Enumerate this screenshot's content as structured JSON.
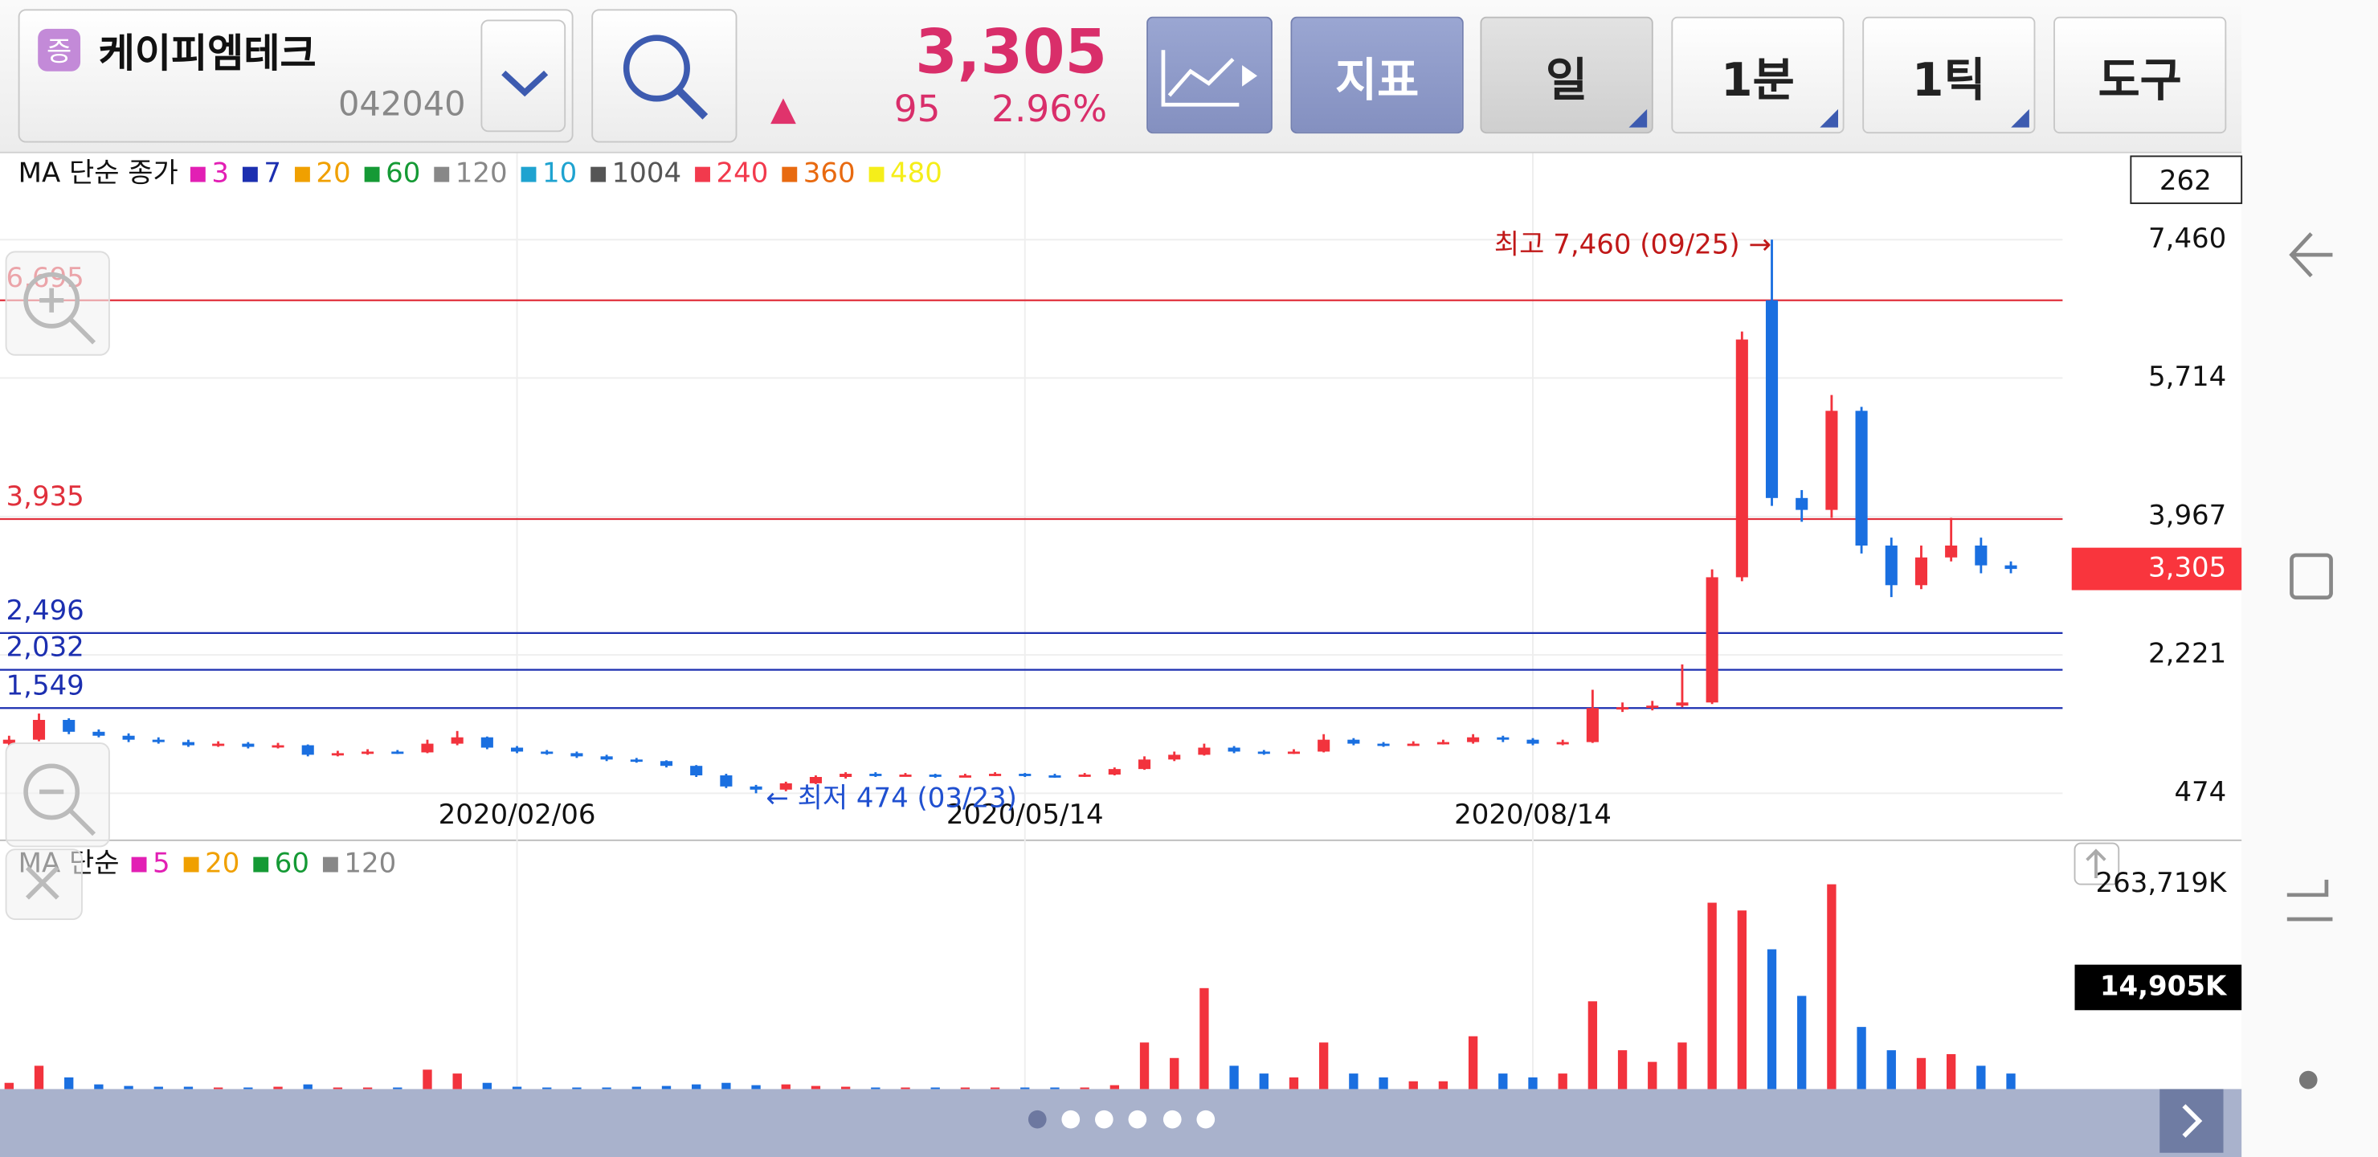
{
  "header": {
    "badge": "증",
    "name": "케이피엠테크",
    "code": "042040",
    "price": "3,305",
    "arrow": "▲",
    "change": "95",
    "change_pct": "2.96%",
    "buttons": [
      "지표",
      "일",
      "1분",
      "1틱",
      "도구"
    ]
  },
  "chart_data": {
    "type": "candlestick",
    "ma_legend": {
      "label": "MA 단순 종가",
      "items": [
        {
          "name": "3",
          "color": "#e21fb4"
        },
        {
          "name": "7",
          "color": "#1c2fb0"
        },
        {
          "name": "20",
          "color": "#f0a000"
        },
        {
          "name": "60",
          "color": "#159a35"
        },
        {
          "name": "120",
          "color": "#888888"
        },
        {
          "name": "10",
          "color": "#1fa3d0"
        },
        {
          "name": "1004",
          "color": "#555555"
        },
        {
          "name": "240",
          "color": "#f23a4d"
        },
        {
          "name": "360",
          "color": "#e86a10"
        },
        {
          "name": "480",
          "color": "#f5ee1a"
        }
      ]
    },
    "categories": [
      null,
      null,
      null,
      null,
      null,
      null,
      null,
      null,
      null,
      null,
      null,
      null,
      null,
      null,
      null,
      null,
      null,
      "2020/02/06",
      null,
      null,
      null,
      null,
      null,
      null,
      null,
      null,
      null,
      null,
      null,
      null,
      null,
      null,
      null,
      null,
      "2020/05/14",
      null,
      null,
      null,
      null,
      null,
      null,
      null,
      null,
      null,
      null,
      null,
      null,
      null,
      null,
      null,
      null,
      "2020/08/14",
      null,
      null,
      null,
      null,
      null,
      null,
      null,
      null,
      null,
      null,
      null,
      null,
      null,
      null,
      null,
      null
    ],
    "open": [
      1100,
      1150,
      1400,
      1250,
      1200,
      1150,
      1120,
      1080,
      1100,
      1060,
      1080,
      960,
      980,
      1000,
      990,
      1100,
      1180,
      1050,
      1000,
      980,
      940,
      900,
      880,
      820,
      700,
      560,
      520,
      600,
      680,
      720,
      700,
      710,
      690,
      700,
      720,
      700,
      690,
      710,
      780,
      900,
      960,
      1050,
      1000,
      980,
      1000,
      1150,
      1100,
      1080,
      1100,
      1120,
      1180,
      1150,
      1100,
      1120,
      1550,
      1560,
      1580,
      1620,
      3200,
      6695,
      4200,
      4050,
      5300,
      3600,
      3100,
      3450,
      3600,
      3350
    ],
    "high": [
      1200,
      1480,
      1420,
      1280,
      1230,
      1180,
      1150,
      1130,
      1120,
      1110,
      1090,
      1010,
      1030,
      1020,
      1150,
      1260,
      1190,
      1070,
      1020,
      1000,
      960,
      920,
      890,
      830,
      720,
      580,
      620,
      700,
      740,
      740,
      730,
      720,
      720,
      740,
      730,
      720,
      730,
      800,
      940,
      1000,
      1100,
      1070,
      1020,
      1030,
      1220,
      1170,
      1120,
      1130,
      1150,
      1220,
      1200,
      1170,
      1150,
      1780,
      1620,
      1640,
      2100,
      3300,
      6300,
      7460,
      4300,
      5500,
      5350,
      3700,
      3600,
      3950,
      3700,
      3400
    ],
    "low": [
      1080,
      1130,
      1220,
      1180,
      1120,
      1100,
      1060,
      1060,
      1040,
      1040,
      940,
      940,
      960,
      970,
      980,
      1080,
      1030,
      980,
      960,
      920,
      880,
      860,
      800,
      680,
      540,
      474,
      500,
      590,
      660,
      680,
      690,
      670,
      680,
      690,
      680,
      670,
      680,
      700,
      770,
      880,
      950,
      980,
      960,
      970,
      990,
      1080,
      1060,
      1070,
      1090,
      1100,
      1120,
      1080,
      1080,
      1110,
      1500,
      1520,
      1560,
      1600,
      3150,
      4100,
      3900,
      3950,
      3500,
      2950,
      3050,
      3400,
      3250,
      3250
    ],
    "close": [
      1150,
      1400,
      1250,
      1200,
      1150,
      1120,
      1080,
      1100,
      1060,
      1080,
      960,
      980,
      1000,
      990,
      1100,
      1180,
      1050,
      1000,
      980,
      940,
      900,
      880,
      820,
      700,
      560,
      520,
      600,
      680,
      720,
      700,
      710,
      690,
      700,
      720,
      700,
      690,
      710,
      780,
      900,
      960,
      1050,
      1000,
      980,
      1000,
      1150,
      1100,
      1080,
      1100,
      1120,
      1180,
      1150,
      1100,
      1120,
      1550,
      1560,
      1580,
      1620,
      3200,
      6200,
      4200,
      4050,
      5300,
      3600,
      3100,
      3450,
      3600,
      3350,
      3305
    ],
    "up_color": "#f2333d",
    "down_color": "#1a6fe0",
    "ylim": [
      474,
      7460
    ],
    "yticks": [
      {
        "value": 7460,
        "label": "7,460"
      },
      {
        "value": 5714,
        "label": "5,714"
      },
      {
        "value": 3967,
        "label": "3,967"
      },
      {
        "value": 2221,
        "label": "2,221"
      },
      {
        "value": 474,
        "label": "474"
      }
    ],
    "grid": true,
    "levels": [
      {
        "value": 6695,
        "label": "6,695",
        "color": "#e0303c"
      },
      {
        "value": 3935,
        "label": "3,935",
        "color": "#e0303c"
      },
      {
        "value": 2496,
        "label": "2,496",
        "color": "#1c2fb0"
      },
      {
        "value": 2032,
        "label": "2,032",
        "color": "#1c2fb0"
      },
      {
        "value": 1549,
        "label": "1,549",
        "color": "#1c2fb0"
      }
    ],
    "annotations": [
      {
        "value": 7460,
        "text": "최고 7,460 (09/25) →",
        "color": "#c01818"
      },
      {
        "value": 474,
        "text": "← 최저 474 (03/23)",
        "color": "#2050d0"
      }
    ],
    "current": {
      "value": 3305,
      "label": "3,305"
    },
    "count_label": "262"
  },
  "volume_chart": {
    "type": "bar",
    "ma_legend": {
      "label": "MA 단순",
      "items": [
        {
          "name": "5",
          "color": "#e21fb4"
        },
        {
          "name": "20",
          "color": "#f0a000"
        },
        {
          "name": "60",
          "color": "#159a35"
        },
        {
          "name": "120",
          "color": "#888888"
        }
      ]
    },
    "values": [
      8000,
      30000,
      15000,
      6000,
      4000,
      3000,
      3000,
      2000,
      2000,
      3000,
      6000,
      2000,
      2000,
      2000,
      25000,
      20000,
      8000,
      3000,
      2000,
      2000,
      2000,
      3000,
      4000,
      6000,
      8000,
      5000,
      6000,
      4000,
      3000,
      2000,
      2000,
      2000,
      2000,
      2000,
      2000,
      2000,
      2000,
      5000,
      60000,
      40000,
      130000,
      30000,
      20000,
      15000,
      60000,
      20000,
      15000,
      10000,
      10000,
      68000,
      20000,
      15000,
      20000,
      113000,
      50000,
      35000,
      60000,
      240000,
      230000,
      180000,
      120000,
      263719,
      80000,
      50000,
      40000,
      45000,
      30000,
      20000
    ],
    "ylim": [
      0,
      263719
    ],
    "yticks": [
      {
        "value": 263719,
        "label": "263,719K"
      }
    ],
    "current_label": "14,905K"
  }
}
